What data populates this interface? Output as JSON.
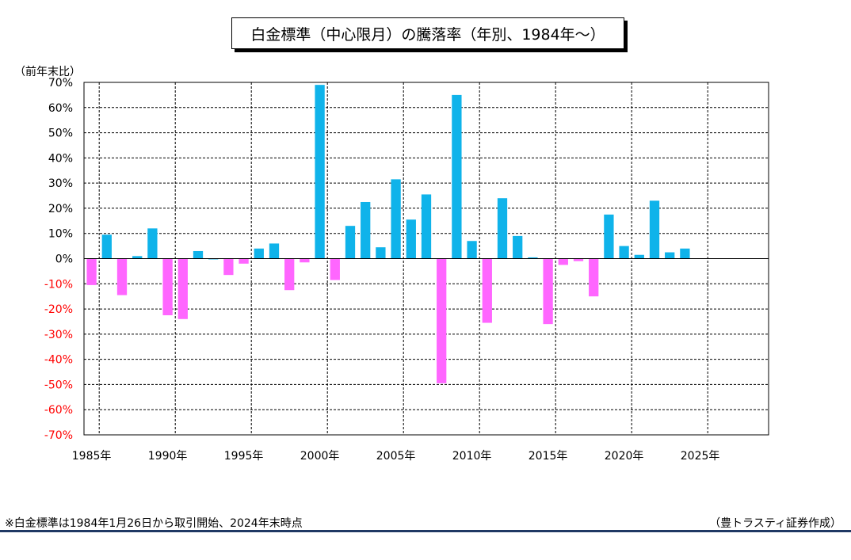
{
  "chart_data": {
    "type": "bar",
    "title": "白金標準（中心限月）の騰落率（年別、1984年～）",
    "ylabel": "（前年末比）",
    "xlabel": "",
    "ylim": [
      -70,
      70
    ],
    "xlim": [
      1984.5,
      2029.5
    ],
    "grid": true,
    "y_ticks": [
      "70%",
      "60%",
      "50%",
      "40%",
      "30%",
      "20%",
      "10%",
      "0%",
      "-10%",
      "-20%",
      "-30%",
      "-40%",
      "-50%",
      "-60%",
      "-70%"
    ],
    "y_tick_values": [
      70,
      60,
      50,
      40,
      30,
      20,
      10,
      0,
      -10,
      -20,
      -30,
      -40,
      -50,
      -60,
      -70
    ],
    "x_ticks": [
      "1985年",
      "1990年",
      "1995年",
      "2000年",
      "2005年",
      "2010年",
      "2015年",
      "2020年",
      "2025年"
    ],
    "x_tick_values": [
      1985,
      1990,
      1995,
      2000,
      2005,
      2010,
      2015,
      2020,
      2025
    ],
    "categories": [
      1985,
      1986,
      1987,
      1988,
      1989,
      1990,
      1991,
      1992,
      1993,
      1994,
      1995,
      1996,
      1997,
      1998,
      1999,
      2000,
      2001,
      2002,
      2003,
      2004,
      2005,
      2006,
      2007,
      2008,
      2009,
      2010,
      2011,
      2012,
      2013,
      2014,
      2015,
      2016,
      2017,
      2018,
      2019,
      2020,
      2021,
      2022,
      2023,
      2024
    ],
    "values": [
      -10.5,
      9.5,
      -14.5,
      1,
      12,
      -22.5,
      -24,
      3,
      0,
      -6.5,
      -2,
      4,
      6,
      -12.5,
      -1.5,
      69,
      -8.5,
      13,
      22.5,
      4.5,
      31.5,
      15.5,
      25.5,
      -49.5,
      65,
      7,
      -25.5,
      24,
      9,
      0.5,
      -26,
      -2.5,
      -1,
      -15,
      17.5,
      5,
      1.5,
      23,
      2.5,
      4
    ],
    "colors": {
      "positive": "#0fb3ea",
      "negative": "#ff66ff",
      "negative_tick": "#ff0000",
      "zero_line": "#000000"
    }
  },
  "footnote": "※白金標準は1984年1月26日から取引開始、2024年末時点",
  "credit": "（豊トラスティ証券作成）"
}
